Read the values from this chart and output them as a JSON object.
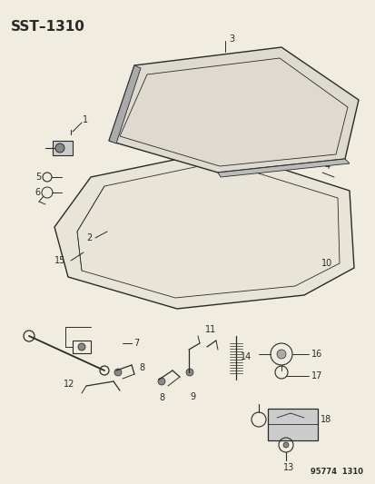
{
  "title": "SST–1310",
  "footer": "95774  1310",
  "bg_color": "#f0ece0",
  "line_color": "#2a2a2a",
  "fg_color": "#1a1a1a",
  "figsize": [
    4.14,
    5.33
  ],
  "dpi": 100
}
